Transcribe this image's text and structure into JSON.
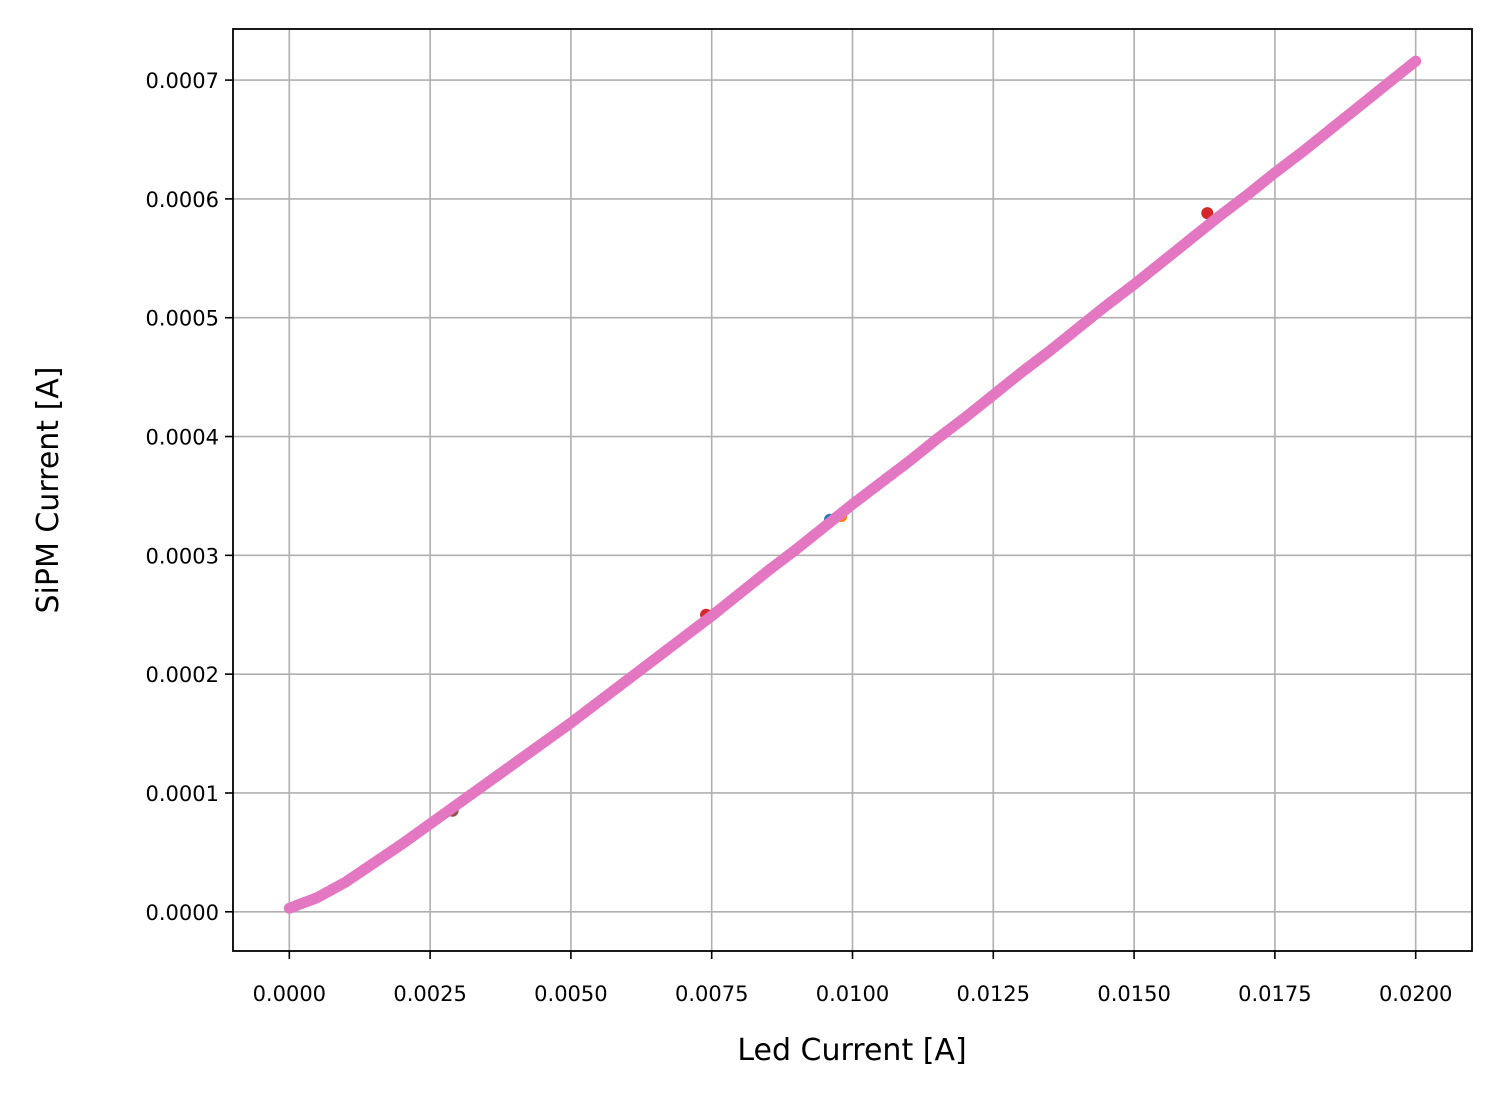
{
  "chart_data": {
    "type": "scatter",
    "title": "",
    "xlabel": "Led Current [A]",
    "ylabel": "SiPM Current [A]",
    "xlim": [
      -0.001,
      0.021
    ],
    "ylim": [
      -3.3e-05,
      0.000743
    ],
    "grid": true,
    "x_ticks": [
      0.0,
      0.0025,
      0.005,
      0.0075,
      0.01,
      0.0125,
      0.015,
      0.0175,
      0.02
    ],
    "x_tick_labels": [
      "0.0000",
      "0.0025",
      "0.0050",
      "0.0075",
      "0.0100",
      "0.0125",
      "0.0150",
      "0.0175",
      "0.0200"
    ],
    "y_ticks": [
      0.0,
      0.0001,
      0.0002,
      0.0003,
      0.0004,
      0.0005,
      0.0006,
      0.0007
    ],
    "y_tick_labels": [
      "0.0000",
      "0.0001",
      "0.0002",
      "0.0003",
      "0.0004",
      "0.0005",
      "0.0006",
      "0.0007"
    ],
    "series_colors": [
      "#1f77b4",
      "#ff7f0e",
      "#2ca02c",
      "#d62728",
      "#9467bd",
      "#8c564b",
      "#e377c2"
    ],
    "series": [
      {
        "color": "#e377c2",
        "x": [
          0.0,
          0.0005,
          0.001,
          0.0015,
          0.002,
          0.0025,
          0.003,
          0.0035,
          0.004,
          0.0045,
          0.005,
          0.0055,
          0.006,
          0.0065,
          0.007,
          0.0075,
          0.008,
          0.0085,
          0.009,
          0.0095,
          0.01,
          0.0105,
          0.011,
          0.0115,
          0.012,
          0.0125,
          0.013,
          0.0135,
          0.014,
          0.0145,
          0.015,
          0.0155,
          0.016,
          0.0165,
          0.017,
          0.0175,
          0.018,
          0.0185,
          0.019,
          0.0195,
          0.02
        ],
        "y": [
          3e-06,
          1.2e-05,
          2.5e-05,
          4.1e-05,
          5.7e-05,
          7.4e-05,
          9.1e-05,
          0.000108,
          0.000125,
          0.000142,
          0.000159,
          0.000177,
          0.000195,
          0.000213,
          0.000231,
          0.000249,
          0.000268,
          0.000287,
          0.000305,
          0.000324,
          0.000343,
          0.000361,
          0.000379,
          0.000398,
          0.000416,
          0.000435,
          0.000454,
          0.000472,
          0.000491,
          0.00051,
          0.000528,
          0.000547,
          0.000566,
          0.000585,
          0.000603,
          0.000622,
          0.00064,
          0.000659,
          0.000678,
          0.000697,
          0.000716
        ]
      }
    ],
    "outliers": [
      {
        "x": 0.0029,
        "y": 8.5e-05,
        "color": "#8c564b"
      },
      {
        "x": 0.0074,
        "y": 0.00025,
        "color": "#d62728"
      },
      {
        "x": 0.0096,
        "y": 0.00033,
        "color": "#1f77b4"
      },
      {
        "x": 0.0098,
        "y": 0.000333,
        "color": "#ff7f0e"
      },
      {
        "x": 0.0163,
        "y": 0.000588,
        "color": "#d62728"
      }
    ]
  }
}
